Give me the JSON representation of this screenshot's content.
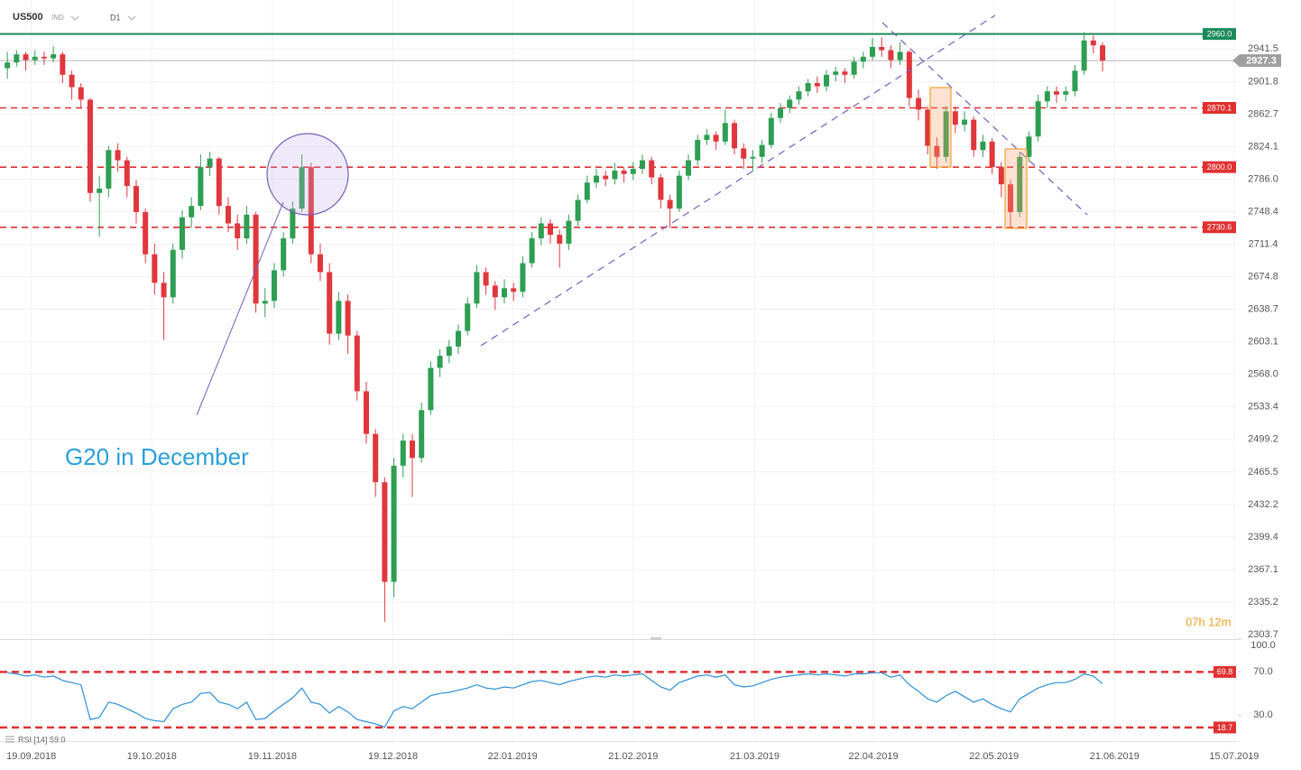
{
  "chart_data": {
    "type": "candlestick",
    "symbol": "US500",
    "market": "IND",
    "timeframe": "D1",
    "annotation": "G20 in December",
    "countdown": "07h 12m",
    "log_scale": true,
    "grid": true,
    "up_color": "#2e9e52",
    "down_color": "#e0373d",
    "ylim": [
      2299.4,
      3000
    ],
    "yticks": [
      2941.5,
      2901.8,
      2862.7,
      2824.1,
      {
        "value": 2786.0,
        "label": "2786.0"
      },
      2748.4,
      2711.4,
      2674.8,
      2638.7,
      2603.1,
      {
        "value": 2568.0,
        "label": "2568.0"
      },
      2533.4,
      2499.2,
      2465.5,
      2432.2,
      2399.4,
      2367.1,
      2335.2,
      2303.7
    ],
    "xlim": [
      -0.8,
      133.7
    ],
    "xticks": [
      {
        "value": 2.6,
        "label": "19.09.2018"
      },
      {
        "value": 15.7,
        "label": "19.10.2018"
      },
      {
        "value": 28.8,
        "label": "19.11.2018"
      },
      {
        "value": 41.9,
        "label": "19.12.2018"
      },
      {
        "value": 54.9,
        "label": "22.01.2019"
      },
      {
        "value": 68.0,
        "label": "21.02.2019"
      },
      {
        "value": 81.2,
        "label": "21.03.2019"
      },
      {
        "value": 94.1,
        "label": "22.04.2019"
      },
      {
        "value": 107.2,
        "label": "22.05.2019"
      },
      {
        "value": 120.3,
        "label": "21.06.2019"
      },
      {
        "value": 133.3,
        "label": "15.07.2019"
      }
    ],
    "last_price": {
      "value": 2927.3,
      "label": "2927.3",
      "color": "#9e9e9e"
    },
    "levels": [
      {
        "value": 2960.0,
        "label": "2960.0",
        "color": "#1a8a5a"
      },
      {
        "value": 2870.1,
        "label": "2870.1",
        "color": "#e03030"
      },
      {
        "value": 2800.0,
        "label": "2800.0",
        "color": "#e03030"
      },
      {
        "value": 2730.6,
        "label": "2730.6",
        "color": "#e03030"
      }
    ],
    "ohlc": [
      [
        2918,
        2938,
        2905,
        2925
      ],
      [
        2925,
        2940,
        2920,
        2935
      ],
      [
        2935,
        2938,
        2915,
        2928
      ],
      [
        2928,
        2940,
        2922,
        2932
      ],
      [
        2932,
        2938,
        2922,
        2930
      ],
      [
        2930,
        2945,
        2925,
        2935
      ],
      [
        2935,
        2938,
        2900,
        2910
      ],
      [
        2910,
        2915,
        2880,
        2895
      ],
      [
        2895,
        2900,
        2870,
        2880
      ],
      [
        2880,
        2882,
        2760,
        2770
      ],
      [
        2770,
        2790,
        2720,
        2775
      ],
      [
        2775,
        2825,
        2765,
        2820
      ],
      [
        2820,
        2828,
        2795,
        2808
      ],
      [
        2808,
        2812,
        2765,
        2778
      ],
      [
        2778,
        2785,
        2735,
        2748
      ],
      [
        2748,
        2752,
        2690,
        2700
      ],
      [
        2700,
        2712,
        2655,
        2668
      ],
      [
        2668,
        2680,
        2605,
        2652
      ],
      [
        2652,
        2712,
        2645,
        2705
      ],
      [
        2705,
        2750,
        2695,
        2742
      ],
      [
        2742,
        2765,
        2730,
        2755
      ],
      [
        2755,
        2815,
        2750,
        2800
      ],
      [
        2800,
        2818,
        2790,
        2810
      ],
      [
        2810,
        2812,
        2745,
        2755
      ],
      [
        2755,
        2765,
        2725,
        2735
      ],
      [
        2735,
        2745,
        2705,
        2718
      ],
      [
        2718,
        2755,
        2712,
        2745
      ],
      [
        2745,
        2748,
        2635,
        2645
      ],
      [
        2645,
        2662,
        2630,
        2648
      ],
      [
        2648,
        2690,
        2640,
        2682
      ],
      [
        2682,
        2725,
        2675,
        2718
      ],
      [
        2718,
        2760,
        2712,
        2752
      ],
      [
        2752,
        2815,
        2748,
        2800
      ],
      [
        2800,
        2805,
        2690,
        2700
      ],
      [
        2700,
        2712,
        2670,
        2680
      ],
      [
        2680,
        2690,
        2600,
        2612
      ],
      [
        2612,
        2658,
        2605,
        2648
      ],
      [
        2648,
        2655,
        2590,
        2610
      ],
      [
        2610,
        2615,
        2540,
        2550
      ],
      [
        2550,
        2560,
        2495,
        2505
      ],
      [
        2505,
        2510,
        2440,
        2455
      ],
      [
        2455,
        2460,
        2316,
        2355
      ],
      [
        2355,
        2480,
        2340,
        2472
      ],
      [
        2472,
        2505,
        2460,
        2498
      ],
      [
        2498,
        2505,
        2440,
        2480
      ],
      [
        2480,
        2538,
        2475,
        2530
      ],
      [
        2530,
        2582,
        2525,
        2575
      ],
      [
        2575,
        2595,
        2565,
        2588
      ],
      [
        2588,
        2605,
        2580,
        2598
      ],
      [
        2598,
        2622,
        2590,
        2615
      ],
      [
        2615,
        2652,
        2610,
        2645
      ],
      [
        2645,
        2688,
        2640,
        2680
      ],
      [
        2680,
        2685,
        2655,
        2665
      ],
      [
        2665,
        2670,
        2638,
        2652
      ],
      [
        2652,
        2672,
        2645,
        2662
      ],
      [
        2662,
        2668,
        2648,
        2658
      ],
      [
        2658,
        2698,
        2652,
        2690
      ],
      [
        2690,
        2725,
        2685,
        2718
      ],
      [
        2718,
        2742,
        2710,
        2735
      ],
      [
        2735,
        2740,
        2712,
        2722
      ],
      [
        2722,
        2728,
        2685,
        2712
      ],
      [
        2712,
        2745,
        2705,
        2738
      ],
      [
        2738,
        2768,
        2732,
        2762
      ],
      [
        2762,
        2790,
        2758,
        2782
      ],
      [
        2782,
        2798,
        2776,
        2790
      ],
      [
        2790,
        2796,
        2778,
        2786
      ],
      [
        2786,
        2805,
        2780,
        2796
      ],
      [
        2796,
        2800,
        2782,
        2792
      ],
      [
        2792,
        2806,
        2785,
        2798
      ],
      [
        2798,
        2815,
        2792,
        2808
      ],
      [
        2808,
        2812,
        2780,
        2788
      ],
      [
        2788,
        2792,
        2752,
        2762
      ],
      [
        2762,
        2768,
        2730,
        2752
      ],
      [
        2752,
        2796,
        2748,
        2790
      ],
      [
        2790,
        2815,
        2785,
        2808
      ],
      [
        2808,
        2838,
        2802,
        2832
      ],
      [
        2832,
        2845,
        2826,
        2838
      ],
      [
        2838,
        2842,
        2820,
        2830
      ],
      [
        2830,
        2868,
        2826,
        2852
      ],
      [
        2852,
        2856,
        2815,
        2822
      ],
      [
        2822,
        2828,
        2798,
        2810
      ],
      [
        2810,
        2820,
        2795,
        2812
      ],
      [
        2812,
        2832,
        2805,
        2826
      ],
      [
        2826,
        2864,
        2822,
        2858
      ],
      [
        2858,
        2876,
        2852,
        2870
      ],
      [
        2870,
        2885,
        2864,
        2880
      ],
      [
        2880,
        2896,
        2874,
        2890
      ],
      [
        2890,
        2905,
        2884,
        2900
      ],
      [
        2900,
        2908,
        2888,
        2896
      ],
      [
        2896,
        2916,
        2890,
        2910
      ],
      [
        2910,
        2920,
        2902,
        2914
      ],
      [
        2914,
        2918,
        2900,
        2910
      ],
      [
        2910,
        2932,
        2905,
        2926
      ],
      [
        2926,
        2938,
        2918,
        2932
      ],
      [
        2932,
        2955,
        2928,
        2944
      ],
      [
        2944,
        2956,
        2932,
        2940
      ],
      [
        2940,
        2946,
        2918,
        2928
      ],
      [
        2928,
        2950,
        2922,
        2938
      ],
      [
        2938,
        2940,
        2872,
        2882
      ],
      [
        2882,
        2892,
        2855,
        2868
      ],
      [
        2868,
        2872,
        2815,
        2825
      ],
      [
        2825,
        2835,
        2798,
        2812
      ],
      [
        2812,
        2872,
        2806,
        2866
      ],
      [
        2866,
        2872,
        2840,
        2850
      ],
      [
        2850,
        2866,
        2842,
        2856
      ],
      [
        2856,
        2860,
        2812,
        2820
      ],
      [
        2820,
        2838,
        2812,
        2830
      ],
      [
        2830,
        2834,
        2792,
        2800
      ],
      [
        2800,
        2806,
        2765,
        2780
      ],
      [
        2780,
        2785,
        2732,
        2748
      ],
      [
        2748,
        2818,
        2742,
        2812
      ],
      [
        2812,
        2842,
        2806,
        2836
      ],
      [
        2836,
        2886,
        2830,
        2878
      ],
      [
        2878,
        2896,
        2870,
        2890
      ],
      [
        2890,
        2896,
        2876,
        2886
      ],
      [
        2886,
        2896,
        2878,
        2890
      ],
      [
        2890,
        2922,
        2884,
        2915
      ],
      [
        2915,
        2962,
        2910,
        2952
      ],
      [
        2952,
        2958,
        2936,
        2946
      ],
      [
        2946,
        2950,
        2914,
        2927.3
      ]
    ],
    "rsi": {
      "name": "RSI [14] 59.0",
      "color": "#2b8fd6",
      "ylim": [
        7,
        100
      ],
      "yticks": [
        {
          "value": 100,
          "label": "100.0"
        },
        {
          "value": 70,
          "label": "70.0"
        },
        {
          "value": 30,
          "label": "30.0"
        }
      ],
      "levels": [
        {
          "value": 69.8,
          "label": "69.8",
          "color": "#e03030"
        },
        {
          "value": 18.7,
          "label": "18.7",
          "color": "#e03030"
        }
      ],
      "values": [
        69,
        68,
        66,
        67,
        65,
        66,
        62,
        60,
        58,
        26,
        28,
        42,
        40,
        36,
        32,
        27,
        25,
        24,
        36,
        40,
        42,
        50,
        51,
        42,
        40,
        36,
        42,
        26,
        27,
        34,
        40,
        46,
        55,
        42,
        40,
        32,
        38,
        33,
        26,
        24,
        22,
        19,
        34,
        38,
        36,
        42,
        48,
        50,
        51,
        53,
        55,
        58,
        55,
        54,
        56,
        55,
        58,
        61,
        62,
        60,
        58,
        61,
        63,
        65,
        66,
        65,
        67,
        66,
        67,
        68,
        62,
        56,
        53,
        60,
        63,
        66,
        67,
        65,
        67,
        58,
        56,
        57,
        60,
        63,
        65,
        66,
        67,
        68,
        67,
        68,
        67,
        66,
        68,
        68,
        69,
        69,
        65,
        67,
        58,
        52,
        45,
        42,
        48,
        52,
        47,
        42,
        45,
        40,
        36,
        33,
        45,
        50,
        55,
        58,
        60,
        60,
        63,
        68,
        66,
        59
      ]
    }
  }
}
